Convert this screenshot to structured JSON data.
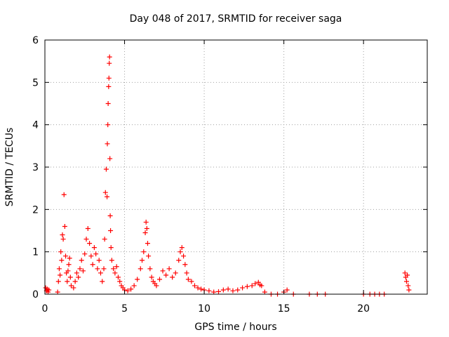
{
  "chart_data": {
    "type": "scatter",
    "title": "Day 048 of 2017, SRMTID for receiver saga",
    "xlabel": "GPS time / hours",
    "ylabel": "SRMTID / TECUs",
    "xlim": [
      0,
      24
    ],
    "ylim": [
      0,
      6
    ],
    "xticks": [
      0,
      5,
      10,
      15,
      20
    ],
    "yticks": [
      0,
      1,
      2,
      3,
      4,
      5,
      6
    ],
    "grid": true,
    "marker": "+",
    "color": "#ff0000",
    "series": [
      {
        "name": "SRMTID",
        "points": [
          [
            0.05,
            0.15
          ],
          [
            0.1,
            0.08
          ],
          [
            0.15,
            0.12
          ],
          [
            0.2,
            0.05
          ],
          [
            0.25,
            0.1
          ],
          [
            0.8,
            0.05
          ],
          [
            0.85,
            0.3
          ],
          [
            0.9,
            0.6
          ],
          [
            0.95,
            0.45
          ],
          [
            1.0,
            1.0
          ],
          [
            1.05,
            0.8
          ],
          [
            1.1,
            1.4
          ],
          [
            1.15,
            1.3
          ],
          [
            1.2,
            2.35
          ],
          [
            1.25,
            1.6
          ],
          [
            1.3,
            0.9
          ],
          [
            1.35,
            0.5
          ],
          [
            1.4,
            0.3
          ],
          [
            1.45,
            0.55
          ],
          [
            1.5,
            0.7
          ],
          [
            1.55,
            0.85
          ],
          [
            1.6,
            0.4
          ],
          [
            1.65,
            0.2
          ],
          [
            1.8,
            0.15
          ],
          [
            1.9,
            0.3
          ],
          [
            2.0,
            0.5
          ],
          [
            2.1,
            0.4
          ],
          [
            2.2,
            0.6
          ],
          [
            2.3,
            0.8
          ],
          [
            2.4,
            0.55
          ],
          [
            2.5,
            0.95
          ],
          [
            2.6,
            1.3
          ],
          [
            2.7,
            1.55
          ],
          [
            2.8,
            1.2
          ],
          [
            2.9,
            0.9
          ],
          [
            3.0,
            0.7
          ],
          [
            3.1,
            1.1
          ],
          [
            3.2,
            0.95
          ],
          [
            3.3,
            0.6
          ],
          [
            3.4,
            0.8
          ],
          [
            3.5,
            0.5
          ],
          [
            3.6,
            0.3
          ],
          [
            3.7,
            0.6
          ],
          [
            3.75,
            1.3
          ],
          [
            3.8,
            2.4
          ],
          [
            3.85,
            2.95
          ],
          [
            3.9,
            2.3
          ],
          [
            3.92,
            3.55
          ],
          [
            3.95,
            4.0
          ],
          [
            3.97,
            4.5
          ],
          [
            4.0,
            4.9
          ],
          [
            4.02,
            5.1
          ],
          [
            4.04,
            5.45
          ],
          [
            4.06,
            5.6
          ],
          [
            4.08,
            3.2
          ],
          [
            4.1,
            1.85
          ],
          [
            4.12,
            1.5
          ],
          [
            4.15,
            1.1
          ],
          [
            4.2,
            0.8
          ],
          [
            4.3,
            0.6
          ],
          [
            4.4,
            0.5
          ],
          [
            4.5,
            0.65
          ],
          [
            4.6,
            0.4
          ],
          [
            4.7,
            0.3
          ],
          [
            4.8,
            0.2
          ],
          [
            4.9,
            0.15
          ],
          [
            5.0,
            0.1
          ],
          [
            5.2,
            0.08
          ],
          [
            5.4,
            0.12
          ],
          [
            5.6,
            0.2
          ],
          [
            5.8,
            0.35
          ],
          [
            6.0,
            0.6
          ],
          [
            6.1,
            0.8
          ],
          [
            6.2,
            1.0
          ],
          [
            6.3,
            1.45
          ],
          [
            6.35,
            1.7
          ],
          [
            6.4,
            1.55
          ],
          [
            6.45,
            1.2
          ],
          [
            6.5,
            0.9
          ],
          [
            6.6,
            0.6
          ],
          [
            6.7,
            0.4
          ],
          [
            6.8,
            0.3
          ],
          [
            6.9,
            0.25
          ],
          [
            7.0,
            0.2
          ],
          [
            7.2,
            0.35
          ],
          [
            7.4,
            0.55
          ],
          [
            7.6,
            0.45
          ],
          [
            7.8,
            0.6
          ],
          [
            8.0,
            0.4
          ],
          [
            8.2,
            0.5
          ],
          [
            8.4,
            0.8
          ],
          [
            8.5,
            1.0
          ],
          [
            8.6,
            1.1
          ],
          [
            8.7,
            0.9
          ],
          [
            8.8,
            0.7
          ],
          [
            8.9,
            0.5
          ],
          [
            9.0,
            0.35
          ],
          [
            9.2,
            0.3
          ],
          [
            9.4,
            0.2
          ],
          [
            9.6,
            0.15
          ],
          [
            9.8,
            0.12
          ],
          [
            10.0,
            0.1
          ],
          [
            10.3,
            0.08
          ],
          [
            10.6,
            0.05
          ],
          [
            10.9,
            0.06
          ],
          [
            11.2,
            0.1
          ],
          [
            11.5,
            0.12
          ],
          [
            11.8,
            0.08
          ],
          [
            12.1,
            0.1
          ],
          [
            12.4,
            0.15
          ],
          [
            12.7,
            0.18
          ],
          [
            13.0,
            0.2
          ],
          [
            13.2,
            0.25
          ],
          [
            13.4,
            0.28
          ],
          [
            13.5,
            0.22
          ],
          [
            13.6,
            0.2
          ],
          [
            13.8,
            0.05
          ],
          [
            14.2,
            0.0
          ],
          [
            14.6,
            0.0
          ],
          [
            15.0,
            0.05
          ],
          [
            15.2,
            0.1
          ],
          [
            15.6,
            0.0
          ],
          [
            16.6,
            0.0
          ],
          [
            17.1,
            0.0
          ],
          [
            17.6,
            0.0
          ],
          [
            20.0,
            0.0
          ],
          [
            20.4,
            0.0
          ],
          [
            20.7,
            0.0
          ],
          [
            21.0,
            0.0
          ],
          [
            21.3,
            0.0
          ],
          [
            22.6,
            0.5
          ],
          [
            22.65,
            0.4
          ],
          [
            22.7,
            0.3
          ],
          [
            22.75,
            0.45
          ],
          [
            22.8,
            0.2
          ],
          [
            22.85,
            0.1
          ]
        ]
      }
    ]
  }
}
